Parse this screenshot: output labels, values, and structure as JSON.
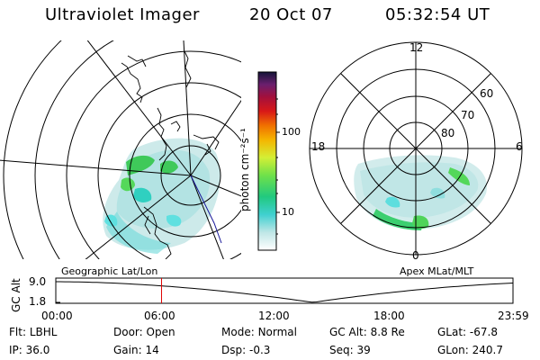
{
  "header": {
    "title": "Ultraviolet Imager",
    "date": "20 Oct 07",
    "time": "05:32:54 UT"
  },
  "colorbar": {
    "label": "photon cm⁻²s⁻¹",
    "ticks": [
      "100",
      "10"
    ]
  },
  "left_panel": {
    "label": "Geographic Lat/Lon"
  },
  "right_panel": {
    "label": "Apex MLat/MLT",
    "mlt": [
      "12",
      "18",
      "6",
      "0"
    ],
    "mlat": [
      "60",
      "70",
      "80"
    ]
  },
  "timeline": {
    "ylabel": "GC Alt",
    "yticks": [
      "9.0",
      "1.8"
    ],
    "xticks": [
      "00:00",
      "06:00",
      "12:00",
      "18:00",
      "23:59"
    ],
    "marker_time_hours": 5.55
  },
  "info": {
    "row1": [
      {
        "k": "Flt:",
        "v": "LBHL"
      },
      {
        "k": "Door:",
        "v": "Open"
      },
      {
        "k": "Mode:",
        "v": "Normal"
      },
      {
        "k": "GC Alt:",
        "v": "8.8 Re"
      },
      {
        "k": "GLat:",
        "v": "-67.8"
      }
    ],
    "row2": [
      {
        "k": "IP:",
        "v": "36.0"
      },
      {
        "k": "Gain:",
        "v": "14"
      },
      {
        "k": "Dsp:",
        "v": "-0.3"
      },
      {
        "k": "Seq:",
        "v": "39"
      },
      {
        "k": "GLon:",
        "v": "240.7"
      }
    ]
  },
  "colors": {
    "marker": "#e00000",
    "coast": "#000000",
    "track": "#1a1a9a"
  }
}
